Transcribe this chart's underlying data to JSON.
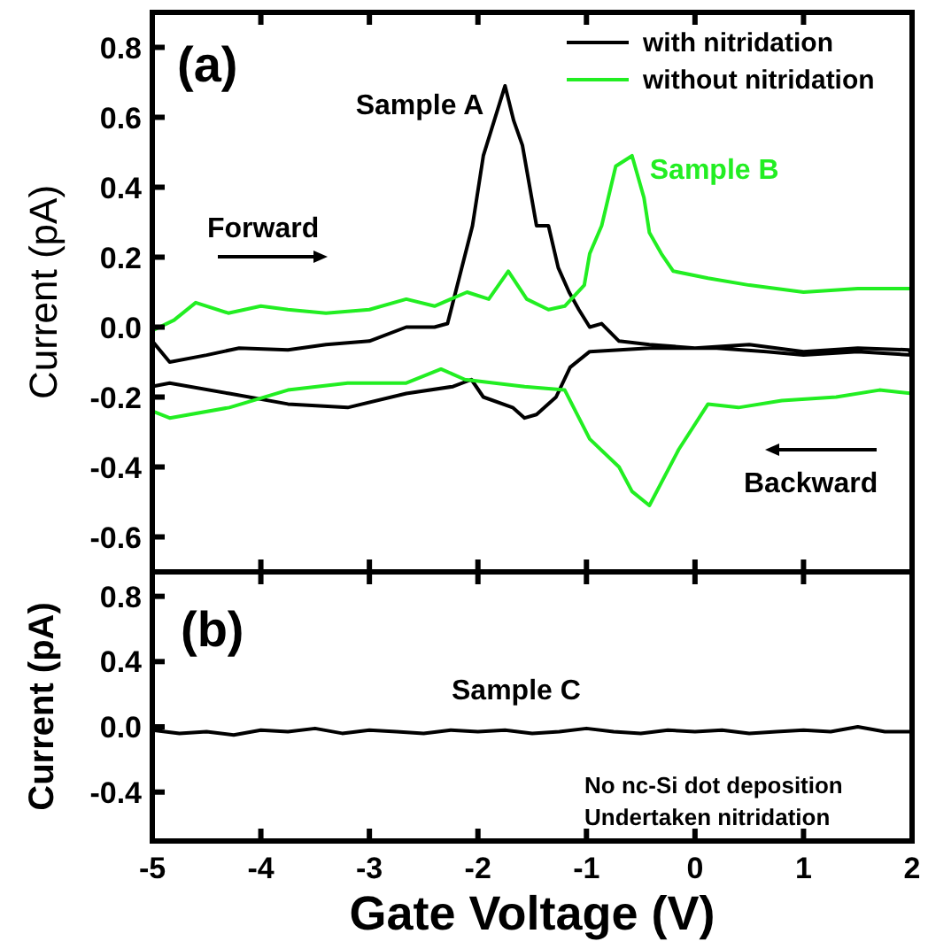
{
  "chart_data": [
    {
      "type": "line",
      "ylabel": "Current (pA)",
      "xlim": [
        -5,
        2
      ],
      "xticks": [
        -5,
        -4,
        -3,
        -2,
        -1,
        0,
        1,
        2
      ],
      "ylim": [
        -0.7,
        0.9
      ],
      "yticks": [
        -0.6,
        -0.4,
        -0.2,
        {
          "value": 0,
          "label": "0.0"
        },
        0.2,
        0.4,
        0.6,
        0.8
      ],
      "tick_labels": "y",
      "grid": false,
      "legend": "top right",
      "annotations": [
        "(a)",
        "Forward",
        "Backward",
        {
          "text": "Sample A",
          "x": -1.75,
          "y": 0.69
        },
        {
          "text": "Sample B",
          "x": -0.58,
          "y": 0.49
        }
      ],
      "series": [
        {
          "name": "with nitridation",
          "color": "#000000",
          "x": [
            -5,
            -4.84,
            -4.5,
            -4.2,
            -3.75,
            -3.4,
            -3.0,
            -2.66,
            -2.4,
            -2.28,
            -2.05,
            -1.95,
            -1.85,
            -1.75,
            -1.67,
            -1.59,
            -1.46,
            -1.35,
            -1.26,
            -1.16,
            -1.07,
            -0.97,
            -0.86,
            -0.7,
            -0.42,
            0,
            0.5,
            1.0,
            1.5,
            1.97,
            2,
            1.5,
            1.0,
            0.66,
            0.2,
            -0.42,
            -0.97,
            -1.15,
            -1.28,
            -1.46,
            -1.57,
            -1.68,
            -1.95,
            -2.06,
            -2.23,
            -2.66,
            -3.2,
            -3.75,
            -4.29,
            -4.84,
            -5
          ],
          "values": [
            -0.04,
            -0.1,
            -0.08,
            -0.06,
            -0.065,
            -0.05,
            -0.04,
            0,
            0.0,
            0.01,
            0.29,
            0.49,
            0.59,
            0.69,
            0.59,
            0.52,
            0.29,
            0.29,
            0.17,
            0.1,
            0.05,
            0,
            0.01,
            -0.04,
            -0.05,
            -0.06,
            -0.05,
            -0.07,
            -0.06,
            -0.065,
            -0.08,
            -0.07,
            -0.08,
            -0.07,
            -0.06,
            -0.06,
            -0.07,
            -0.115,
            -0.2,
            -0.25,
            -0.26,
            -0.23,
            -0.2,
            -0.15,
            -0.17,
            -0.19,
            -0.23,
            -0.22,
            -0.19,
            -0.16,
            -0.17
          ]
        },
        {
          "name": "without nitridation",
          "color": "#22ee22",
          "x": [
            -5,
            -4.8,
            -4.6,
            -4.3,
            -4.0,
            -3.75,
            -3.4,
            -3.0,
            -2.66,
            -2.4,
            -2.1,
            -1.9,
            -1.72,
            -1.55,
            -1.35,
            -1.2,
            -1.02,
            -0.97,
            -0.86,
            -0.73,
            -0.58,
            -0.47,
            -0.42,
            -0.31,
            -0.2,
            0.12,
            0.5,
            1.0,
            1.5,
            2,
            2,
            1.7,
            1.3,
            0.8,
            0.4,
            0.12,
            -0.15,
            -0.42,
            -0.58,
            -0.7,
            -0.97,
            -1.2,
            -1.57,
            -2.12,
            -2.34,
            -2.66,
            -3.2,
            -3.75,
            -4.29,
            -4.84,
            -5
          ],
          "values": [
            -0.01,
            0.02,
            0.07,
            0.04,
            0.06,
            0.05,
            0.04,
            0.05,
            0.08,
            0.06,
            0.1,
            0.08,
            0.16,
            0.08,
            0.05,
            0.06,
            0.12,
            0.21,
            0.29,
            0.46,
            0.49,
            0.37,
            0.27,
            0.21,
            0.16,
            0.14,
            0.12,
            0.1,
            0.11,
            0.11,
            -0.19,
            -0.18,
            -0.2,
            -0.21,
            -0.23,
            -0.22,
            -0.35,
            -0.51,
            -0.47,
            -0.4,
            -0.32,
            -0.18,
            -0.17,
            -0.15,
            -0.12,
            -0.16,
            -0.16,
            -0.18,
            -0.23,
            -0.26,
            -0.24
          ]
        }
      ]
    },
    {
      "type": "line",
      "xlabel": "Gate Voltage (V)",
      "ylabel": "Current (pA)",
      "xlim": [
        -5,
        2
      ],
      "xticks": [
        -5,
        -4,
        -3,
        -2,
        -1,
        0,
        1,
        2
      ],
      "ylim": [
        -0.7,
        0.95
      ],
      "yticks": [
        -0.4,
        {
          "value": 0,
          "label": "0.0"
        },
        0.4,
        0.8
      ],
      "grid": false,
      "annotations": [
        "(b)",
        "Sample C",
        "No nc-Si dot deposition",
        "Undertaken nitridation"
      ],
      "series": [
        {
          "color": "#000000",
          "x": [
            -5,
            -4.75,
            -4.5,
            -4.25,
            -4,
            -3.75,
            -3.5,
            -3.25,
            -3,
            -2.75,
            -2.5,
            -2.25,
            -2,
            -1.75,
            -1.5,
            -1.25,
            -1,
            -0.75,
            -0.5,
            -0.25,
            0,
            0.25,
            0.5,
            0.75,
            1,
            1.25,
            1.5,
            1.75,
            2
          ],
          "values": [
            -0.02,
            -0.04,
            -0.03,
            -0.05,
            -0.02,
            -0.03,
            -0.01,
            -0.04,
            -0.02,
            -0.03,
            -0.04,
            -0.02,
            -0.03,
            -0.02,
            -0.04,
            -0.03,
            -0.01,
            -0.03,
            -0.04,
            -0.02,
            -0.03,
            -0.02,
            -0.04,
            -0.03,
            -0.02,
            -0.03,
            0.0,
            -0.03,
            -0.03
          ]
        }
      ]
    }
  ]
}
